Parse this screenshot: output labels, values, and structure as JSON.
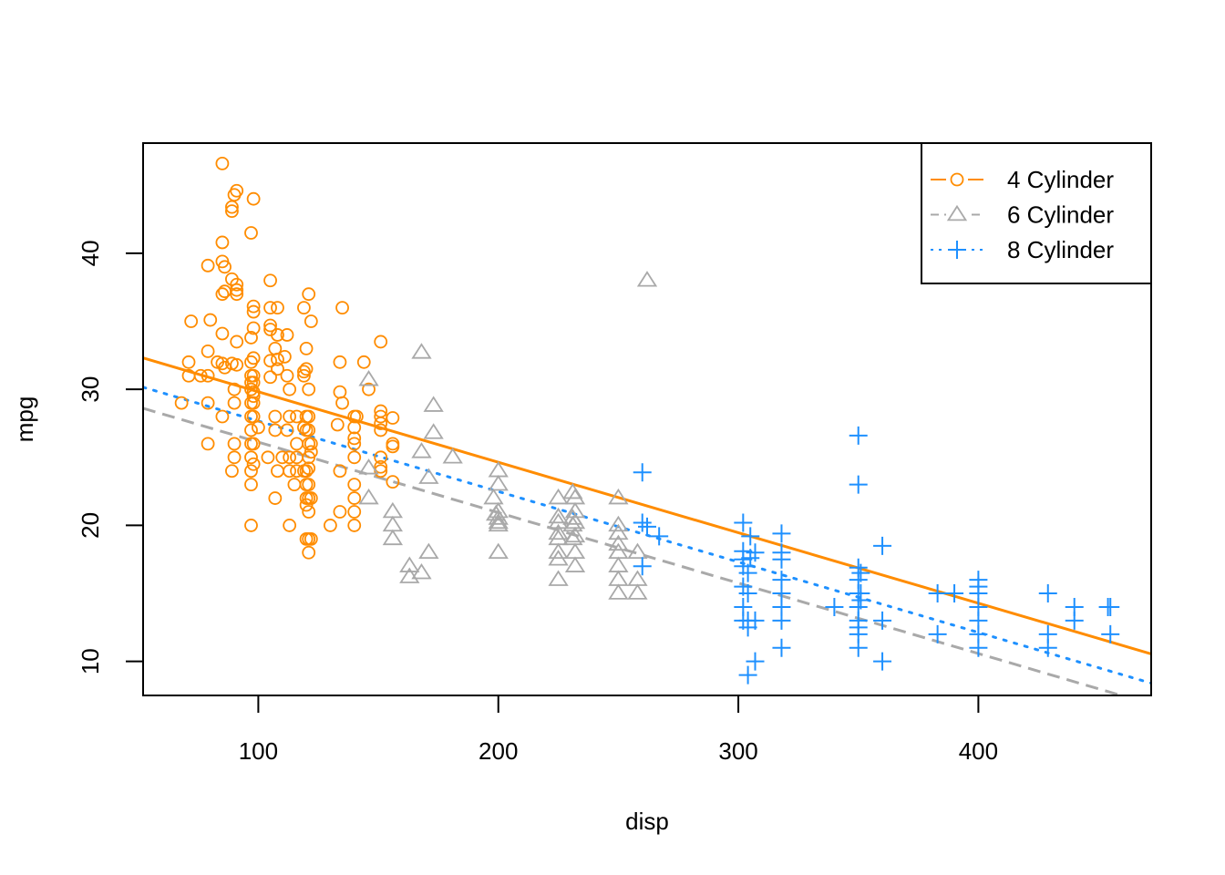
{
  "chart_data": {
    "type": "scatter",
    "title": "",
    "xlabel": "disp",
    "ylabel": "mpg",
    "xlim": [
      52,
      472
    ],
    "ylim": [
      7.5,
      48.1
    ],
    "x_ticks": [
      100,
      200,
      300,
      400
    ],
    "x_tick_labels": [
      "100",
      "200",
      "300",
      "400"
    ],
    "y_ticks": [
      10,
      20,
      30,
      40
    ],
    "y_tick_labels": [
      "10",
      "20",
      "30",
      "40"
    ],
    "grid": false,
    "legend": {
      "position": "top-right",
      "entries": [
        "4 Cylinder",
        "6 Cylinder",
        "8 Cylinder"
      ]
    },
    "series": [
      {
        "name": "4 Cylinder",
        "color": "#FF8C00",
        "marker": "circle",
        "line_style": "solid",
        "fit_line": {
          "intercept": 35.0,
          "slope": -0.0518
        },
        "points": [
          [
            85,
            46.6
          ],
          [
            91,
            44.6
          ],
          [
            90,
            44.3
          ],
          [
            89,
            43.4
          ],
          [
            89,
            43.1
          ],
          [
            98,
            44.0
          ],
          [
            97,
            41.5
          ],
          [
            85,
            40.8
          ],
          [
            79,
            39.1
          ],
          [
            85,
            39.4
          ],
          [
            86,
            39.0
          ],
          [
            89,
            38.1
          ],
          [
            91,
            37.7
          ],
          [
            91,
            37.3
          ],
          [
            86,
            37.2
          ],
          [
            85,
            37.0
          ],
          [
            105,
            38.0
          ],
          [
            91,
            37.0
          ],
          [
            121,
            37.0
          ],
          [
            119,
            36.0
          ],
          [
            135,
            36.0
          ],
          [
            98,
            36.1
          ],
          [
            98,
            35.7
          ],
          [
            105,
            36.0
          ],
          [
            108,
            36.0
          ],
          [
            72,
            35.0
          ],
          [
            80,
            35.1
          ],
          [
            122,
            35.0
          ],
          [
            98,
            34.5
          ],
          [
            105,
            34.7
          ],
          [
            105,
            34.4
          ],
          [
            108,
            34.0
          ],
          [
            112,
            34.0
          ],
          [
            85,
            34.1
          ],
          [
            91,
            33.5
          ],
          [
            97,
            33.8
          ],
          [
            151,
            33.5
          ],
          [
            107,
            33.0
          ],
          [
            120,
            33.0
          ],
          [
            79,
            32.8
          ],
          [
            98,
            32.3
          ],
          [
            108,
            32.2
          ],
          [
            111,
            32.4
          ],
          [
            105,
            32.1
          ],
          [
            97,
            32.0
          ],
          [
            71,
            32.0
          ],
          [
            83,
            32.0
          ],
          [
            85,
            31.9
          ],
          [
            89,
            31.9
          ],
          [
            91,
            31.8
          ],
          [
            86,
            31.6
          ],
          [
            108,
            31.5
          ],
          [
            120,
            31.5
          ],
          [
            119,
            31.0
          ],
          [
            134,
            32.0
          ],
          [
            144,
            32.0
          ],
          [
            146,
            30.0
          ],
          [
            76,
            31.0
          ],
          [
            71,
            31.0
          ],
          [
            79,
            31.0
          ],
          [
            97,
            31.0
          ],
          [
            98,
            31.0
          ],
          [
            105,
            30.9
          ],
          [
            112,
            31.0
          ],
          [
            97,
            30.5
          ],
          [
            98,
            30.5
          ],
          [
            119,
            31.3
          ],
          [
            90,
            30.0
          ],
          [
            97,
            30.0
          ],
          [
            98,
            29.8
          ],
          [
            113,
            30.0
          ],
          [
            121,
            30.0
          ],
          [
            98,
            29.5
          ],
          [
            134,
            29.8
          ],
          [
            135,
            29.0
          ],
          [
            68,
            29.0
          ],
          [
            90,
            29.0
          ],
          [
            97,
            29.0
          ],
          [
            98,
            29.0
          ],
          [
            79,
            29.0
          ],
          [
            85,
            28.0
          ],
          [
            97,
            28.0
          ],
          [
            98,
            28.0
          ],
          [
            107,
            28.0
          ],
          [
            113,
            28.0
          ],
          [
            116,
            28.0
          ],
          [
            120,
            28.0
          ],
          [
            121,
            28.0
          ],
          [
            140,
            28.0
          ],
          [
            141,
            28.0
          ],
          [
            151,
            28.4
          ],
          [
            151,
            28.0
          ],
          [
            156,
            27.9
          ],
          [
            151,
            27.5
          ],
          [
            97,
            27.0
          ],
          [
            100,
            27.2
          ],
          [
            107,
            27.0
          ],
          [
            112,
            27.0
          ],
          [
            119,
            27.2
          ],
          [
            120,
            27.0
          ],
          [
            121,
            27.0
          ],
          [
            133,
            27.4
          ],
          [
            140,
            27.2
          ],
          [
            151,
            27.0
          ],
          [
            79,
            26.0
          ],
          [
            97,
            26.0
          ],
          [
            98,
            26.0
          ],
          [
            90,
            26.0
          ],
          [
            116,
            26.0
          ],
          [
            121,
            26.0
          ],
          [
            122,
            26.0
          ],
          [
            140,
            26.0
          ],
          [
            140,
            26.4
          ],
          [
            156,
            26.0
          ],
          [
            156,
            25.8
          ],
          [
            90,
            25.0
          ],
          [
            97,
            25.0
          ],
          [
            104,
            25.0
          ],
          [
            110,
            25.0
          ],
          [
            113,
            25.0
          ],
          [
            116,
            25.0
          ],
          [
            121,
            25.0
          ],
          [
            122,
            25.4
          ],
          [
            140,
            25.0
          ],
          [
            151,
            25.0
          ],
          [
            98,
            24.5
          ],
          [
            89,
            24.0
          ],
          [
            97,
            24.0
          ],
          [
            108,
            24.0
          ],
          [
            113,
            24.0
          ],
          [
            116,
            24.0
          ],
          [
            119,
            24.0
          ],
          [
            120,
            24.0
          ],
          [
            121,
            24.2
          ],
          [
            134,
            24.0
          ],
          [
            151,
            24.3
          ],
          [
            151,
            24.0
          ],
          [
            121,
            23.0
          ],
          [
            120,
            23.0
          ],
          [
            140,
            23.0
          ],
          [
            115,
            23.0
          ],
          [
            97,
            23.0
          ],
          [
            156,
            23.2
          ],
          [
            107,
            22.0
          ],
          [
            120,
            22.0
          ],
          [
            121,
            22.0
          ],
          [
            122,
            22.0
          ],
          [
            140,
            22.0
          ],
          [
            134,
            21.0
          ],
          [
            120,
            21.5
          ],
          [
            121,
            21.0
          ],
          [
            140,
            21.0
          ],
          [
            97,
            20.0
          ],
          [
            113,
            20.0
          ],
          [
            130,
            20.0
          ],
          [
            140,
            20.0
          ],
          [
            120,
            19.0
          ],
          [
            121,
            19.0
          ],
          [
            122,
            19.0
          ],
          [
            121,
            18.0
          ]
        ]
      },
      {
        "name": "6 Cylinder",
        "color": "#A9A9A9",
        "marker": "triangle",
        "line_style": "dashed",
        "fit_line": {
          "intercept": 31.3,
          "slope": -0.0518
        },
        "points": [
          [
            262,
            38.0
          ],
          [
            168,
            32.7
          ],
          [
            146,
            30.7
          ],
          [
            173,
            28.8
          ],
          [
            173,
            26.8
          ],
          [
            168,
            25.4
          ],
          [
            181,
            25.0
          ],
          [
            146,
            24.2
          ],
          [
            200,
            24.0
          ],
          [
            171,
            23.5
          ],
          [
            225,
            22.0
          ],
          [
            231,
            22.4
          ],
          [
            232,
            22.0
          ],
          [
            250,
            22.0
          ],
          [
            146,
            22.0
          ],
          [
            200,
            23.0
          ],
          [
            232,
            21.0
          ],
          [
            156,
            21.0
          ],
          [
            198,
            22.0
          ],
          [
            200,
            21.0
          ],
          [
            200,
            20.5
          ],
          [
            200,
            20.0
          ],
          [
            199,
            20.8
          ],
          [
            231,
            20.5
          ],
          [
            225,
            20.2
          ],
          [
            232,
            20.2
          ],
          [
            250,
            20.0
          ],
          [
            231,
            20.0
          ],
          [
            225,
            19.0
          ],
          [
            225,
            19.4
          ],
          [
            232,
            19.2
          ],
          [
            250,
            19.4
          ],
          [
            231,
            19.0
          ],
          [
            250,
            18.6
          ],
          [
            250,
            18.0
          ],
          [
            225,
            18.0
          ],
          [
            258,
            18.0
          ],
          [
            232,
            18.0
          ],
          [
            156,
            20.0
          ],
          [
            156,
            19.0
          ],
          [
            225,
            17.5
          ],
          [
            250,
            17.0
          ],
          [
            232,
            17.0
          ],
          [
            258,
            16.0
          ],
          [
            250,
            16.0
          ],
          [
            225,
            16.0
          ],
          [
            163,
            17.0
          ],
          [
            163,
            16.2
          ],
          [
            168,
            16.5
          ],
          [
            171,
            18.0
          ],
          [
            200,
            18.0
          ],
          [
            250,
            15.0
          ],
          [
            258,
            15.0
          ],
          [
            225,
            20.6
          ],
          [
            200,
            20.2
          ]
        ]
      },
      {
        "name": "8 Cylinder",
        "color": "#1E90FF",
        "marker": "plus",
        "line_style": "dotted",
        "fit_line": {
          "intercept": 32.85,
          "slope": -0.0518
        },
        "points": [
          [
            350,
            26.6
          ],
          [
            350,
            23.0
          ],
          [
            260,
            23.9
          ],
          [
            260,
            20.2
          ],
          [
            262,
            19.9
          ],
          [
            267,
            19.2
          ],
          [
            302,
            20.2
          ],
          [
            305,
            19.2
          ],
          [
            318,
            19.4
          ],
          [
            360,
            18.5
          ],
          [
            302,
            18.1
          ],
          [
            318,
            18.0
          ],
          [
            307,
            18.0
          ],
          [
            318,
            17.5
          ],
          [
            302,
            17.5
          ],
          [
            350,
            16.9
          ],
          [
            351,
            16.5
          ],
          [
            260,
            17.0
          ],
          [
            302,
            17.0
          ],
          [
            305,
            17.6
          ],
          [
            304,
            16.5
          ],
          [
            318,
            16.0
          ],
          [
            350,
            16.0
          ],
          [
            400,
            16.0
          ],
          [
            400,
            15.5
          ],
          [
            302,
            15.5
          ],
          [
            304,
            15.0
          ],
          [
            318,
            15.0
          ],
          [
            350,
            15.0
          ],
          [
            351,
            15.0
          ],
          [
            383,
            15.0
          ],
          [
            390,
            15.0
          ],
          [
            429,
            15.0
          ],
          [
            400,
            15.0
          ],
          [
            302,
            14.0
          ],
          [
            318,
            14.0
          ],
          [
            340,
            14.0
          ],
          [
            350,
            14.0
          ],
          [
            351,
            14.5
          ],
          [
            440,
            14.0
          ],
          [
            455,
            14.0
          ],
          [
            400,
            14.0
          ],
          [
            454,
            14.0
          ],
          [
            304,
            13.0
          ],
          [
            307,
            13.0
          ],
          [
            318,
            13.0
          ],
          [
            350,
            13.0
          ],
          [
            360,
            13.0
          ],
          [
            400,
            13.0
          ],
          [
            440,
            13.0
          ],
          [
            302,
            13.0
          ],
          [
            350,
            12.0
          ],
          [
            383,
            12.0
          ],
          [
            400,
            12.0
          ],
          [
            429,
            12.0
          ],
          [
            455,
            12.0
          ],
          [
            304,
            12.5
          ],
          [
            318,
            11.0
          ],
          [
            350,
            11.0
          ],
          [
            400,
            11.0
          ],
          [
            429,
            11.0
          ],
          [
            307,
            10.0
          ],
          [
            360,
            10.0
          ],
          [
            304,
            9.0
          ],
          [
            350,
            12.5
          ]
        ]
      }
    ]
  }
}
